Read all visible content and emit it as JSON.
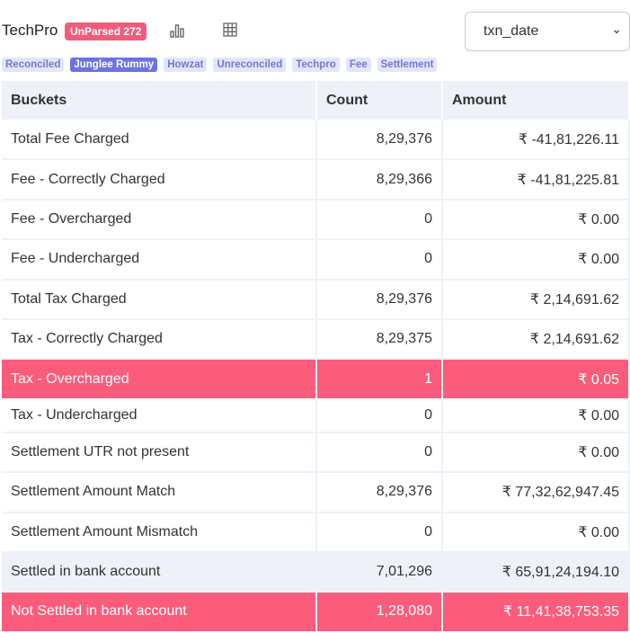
{
  "header": {
    "title": "TechPro",
    "badge": "UnParsed 272",
    "select_value": "txn_date"
  },
  "chips": [
    "Reconciled",
    "Junglee Rummy",
    "Howzat",
    "Unreconciled",
    "Techpro",
    "Fee",
    "Settlement"
  ],
  "active_chip": "Junglee Rummy",
  "table": {
    "headers": [
      "Buckets",
      "Count",
      "Amount"
    ],
    "rows": [
      [
        "Total Fee Charged",
        "8,29,376",
        "₹ -41,81,226.11"
      ],
      [
        "Fee - Correctly Charged",
        "8,29,366",
        "₹ -41,81,225.81"
      ],
      [
        "Fee - Overcharged",
        "0",
        "₹ 0.00"
      ],
      [
        "Fee - Undercharged",
        "0",
        "₹ 0.00"
      ],
      [
        "Total Tax Charged",
        "8,29,376",
        "₹ 2,14,691.62"
      ],
      [
        "Tax - Correctly Charged",
        "8,29,375",
        "₹ 2,14,691.62"
      ],
      [
        "Tax - Overcharged",
        "1",
        "₹ 0.05"
      ],
      [
        "Tax - Undercharged",
        "0",
        "₹ 0.00"
      ],
      [
        "Settlement UTR not present",
        "0",
        "₹ 0.00"
      ],
      [
        "Settlement Amount Match",
        "8,29,376",
        "₹ 77,32,62,947.45"
      ],
      [
        "Settlement Amount Mismatch",
        "0",
        "₹ 0.00"
      ],
      [
        "Settled in bank account",
        "7,01,296",
        "₹ 65,91,24,194.10"
      ],
      [
        "Not Settled in bank account",
        "1,28,080",
        "₹ 11,41,38,753.35"
      ]
    ]
  },
  "colors": {
    "alert": "#fc5c7b",
    "chip_active": "#6c73e0",
    "badge": "#f25c7a"
  }
}
